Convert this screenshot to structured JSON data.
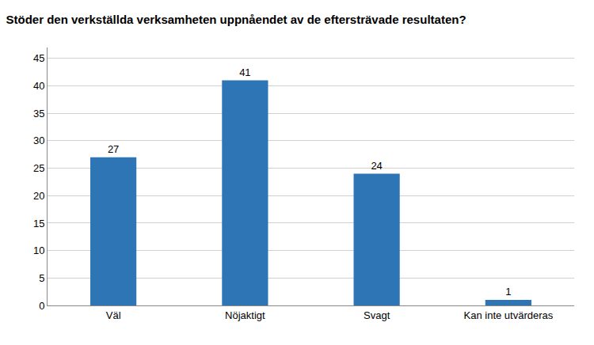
{
  "chart_data": {
    "type": "bar",
    "title": "Stöder den verkställda verksamheten uppnåendet av de eftersträvade resultaten?",
    "categories": [
      "Väl",
      "Nöjaktigt",
      "Svagt",
      "Kan inte utvärderas"
    ],
    "values": [
      27,
      41,
      24,
      1
    ],
    "color": "#2E75B6",
    "ylim": [
      0,
      47
    ],
    "yticks": [
      0,
      5,
      10,
      15,
      20,
      25,
      30,
      35,
      40,
      45
    ],
    "grid": true,
    "data_labels": true
  }
}
